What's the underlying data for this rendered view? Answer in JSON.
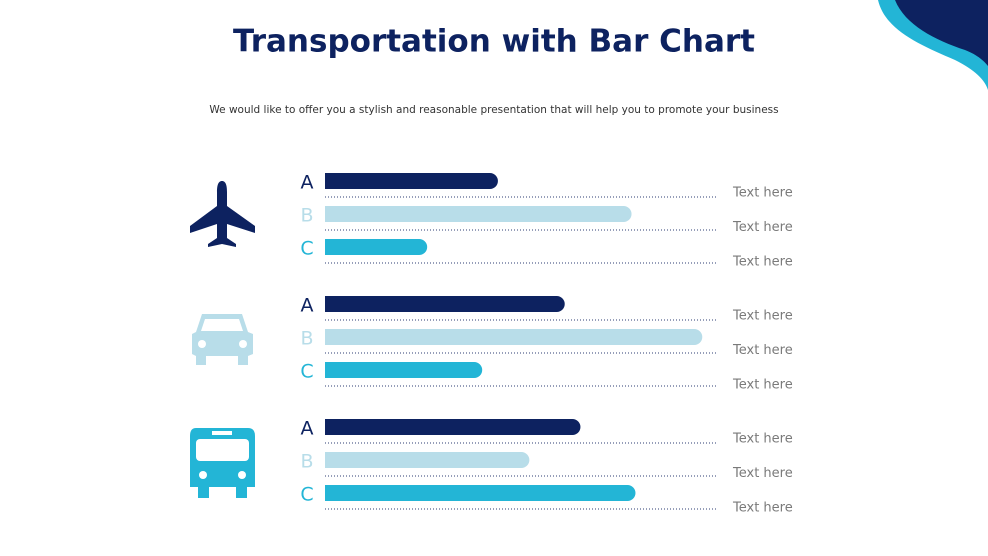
{
  "chart_data": {
    "type": "bar",
    "title": "Transportation with Bar Chart",
    "subtitle": "We would like to offer you a stylish and reasonable presentation that will help you to promote your business",
    "categories": [
      "A",
      "B",
      "C"
    ],
    "colors": [
      "#0d2260",
      "#b8dde9",
      "#23b5d6"
    ],
    "xlim": [
      0,
      100
    ],
    "groups": [
      {
        "values": [
          44,
          78,
          26
        ],
        "notes": [
          "Text here",
          "Text here",
          "Text here"
        ]
      },
      {
        "values": [
          61,
          96,
          40
        ],
        "notes": [
          "Text here",
          "Text here",
          "Text here"
        ]
      },
      {
        "values": [
          65,
          52,
          79
        ],
        "notes": [
          "Text here",
          "Text here",
          "Text here"
        ]
      }
    ]
  }
}
